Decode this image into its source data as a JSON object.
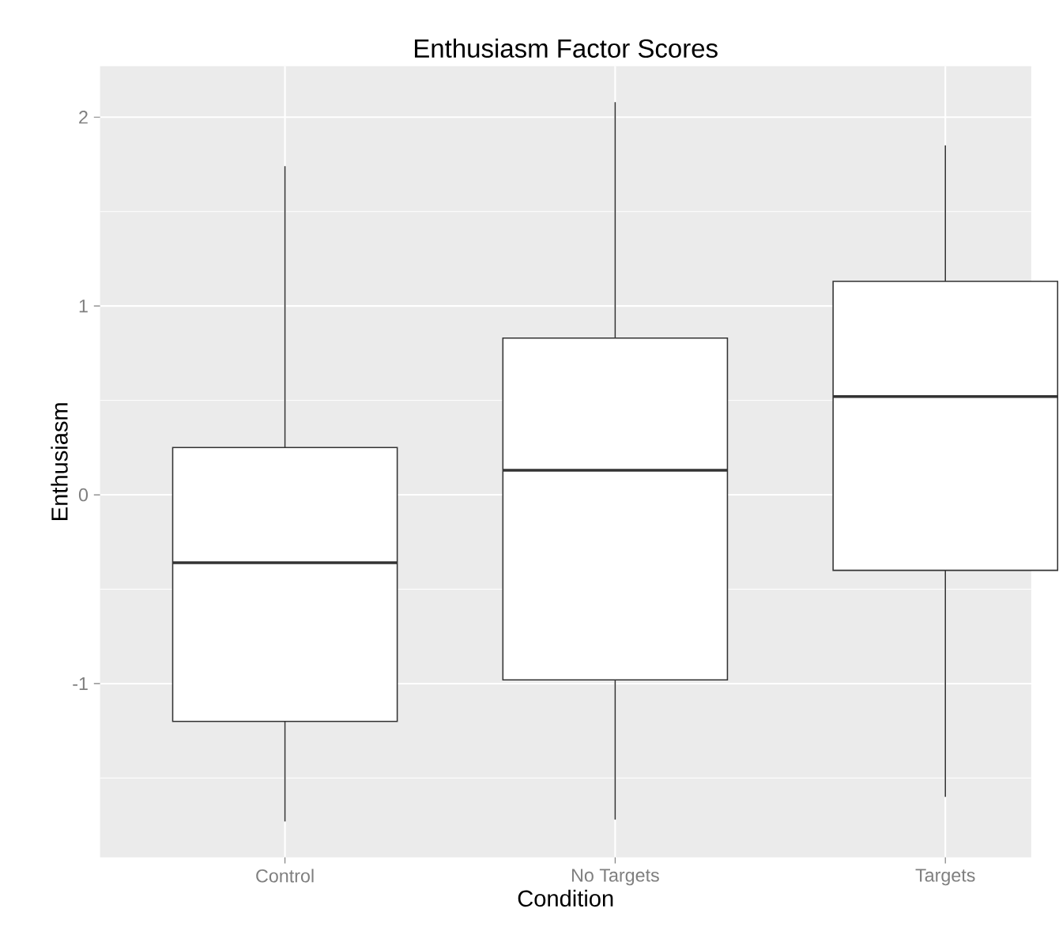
{
  "chart_data": {
    "type": "box",
    "title": "Enthusiasm Factor Scores",
    "xlabel": "Condition",
    "ylabel": "Enthusiasm",
    "categories": [
      "Control",
      "No Targets",
      "Targets"
    ],
    "boxes": [
      {
        "low": -1.73,
        "q1": -1.2,
        "median": -0.36,
        "q3": 0.25,
        "high": 1.74
      },
      {
        "low": -1.72,
        "q1": -0.98,
        "median": 0.13,
        "q3": 0.83,
        "high": 2.08
      },
      {
        "low": -1.6,
        "q1": -0.4,
        "median": 0.52,
        "q3": 1.13,
        "high": 1.85
      }
    ],
    "color": "#333333",
    "ylim": [
      -1.92,
      2.27
    ],
    "yticks": [
      {
        "value": -1.5,
        "label": null
      },
      -1,
      {
        "value": -0.5,
        "label": null
      },
      0,
      {
        "value": 0.5,
        "label": null
      },
      1,
      {
        "value": 1.5,
        "label": null
      },
      2
    ],
    "grid": true
  }
}
